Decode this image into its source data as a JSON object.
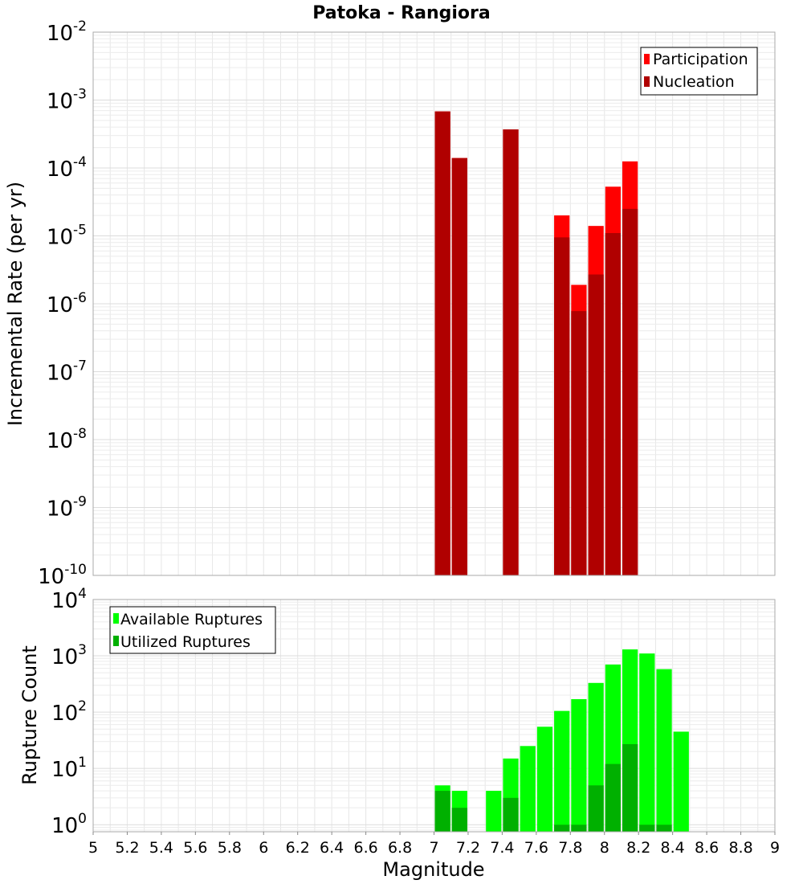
{
  "chart_data": [
    {
      "type": "bar",
      "title": "Patoka - Rangiora",
      "xlabel": "",
      "ylabel": "Incremental Rate (per yr)",
      "yscale": "log",
      "xlim": [
        5,
        9
      ],
      "ylim": [
        1e-10,
        0.01
      ],
      "bin_width": 0.1,
      "y_tick_exponents": [
        "-10",
        "-9",
        "-8",
        "-7",
        "-6",
        "-5",
        "-4",
        "-3",
        "-2"
      ],
      "y_tick_base": "10",
      "grid": true,
      "legend_position": "top-right",
      "x": [
        7.05,
        7.15,
        7.45,
        7.75,
        7.85,
        7.95,
        8.05,
        8.15
      ],
      "series": [
        {
          "name": "Participation",
          "color": "#ff0000",
          "values": [
            0.00068,
            0.00014,
            0.00037,
            2e-05,
            1.9e-06,
            1.4e-05,
            5.3e-05,
            0.000125
          ]
        },
        {
          "name": "Nucleation",
          "color": "#b00000",
          "values": [
            0.00068,
            0.00014,
            0.00037,
            9.5e-06,
            7.8e-07,
            2.7e-06,
            1.1e-05,
            2.5e-05
          ]
        }
      ]
    },
    {
      "type": "bar",
      "title": "",
      "xlabel": "Magnitude",
      "ylabel": "Rupture Count",
      "yscale": "log",
      "xlim": [
        5,
        9
      ],
      "ylim": [
        0.75,
        10000
      ],
      "bin_width": 0.1,
      "y_tick_exponents": [
        "0",
        "1",
        "2",
        "3",
        "4"
      ],
      "y_tick_base": "10",
      "x_ticks": [
        "5",
        "5.2",
        "5.4",
        "5.6",
        "5.8",
        "6",
        "6.2",
        "6.4",
        "6.6",
        "6.8",
        "7",
        "7.2",
        "7.4",
        "7.6",
        "7.8",
        "8",
        "8.2",
        "8.4",
        "8.6",
        "8.8",
        "9"
      ],
      "grid": true,
      "legend_position": "top-left",
      "x": [
        7.05,
        7.15,
        7.35,
        7.45,
        7.55,
        7.65,
        7.75,
        7.85,
        7.95,
        8.05,
        8.15,
        8.25,
        8.35,
        8.45
      ],
      "series": [
        {
          "name": "Available Ruptures",
          "color": "#00ff00",
          "values": [
            5,
            4,
            4,
            15,
            25,
            55,
            105,
            170,
            330,
            700,
            1300,
            1100,
            580,
            45
          ]
        },
        {
          "name": "Utilized Ruptures",
          "color": "#00b000",
          "values": [
            4,
            2,
            0,
            3,
            0,
            0,
            1,
            1,
            5,
            12,
            27,
            1,
            1,
            0
          ]
        }
      ]
    }
  ]
}
